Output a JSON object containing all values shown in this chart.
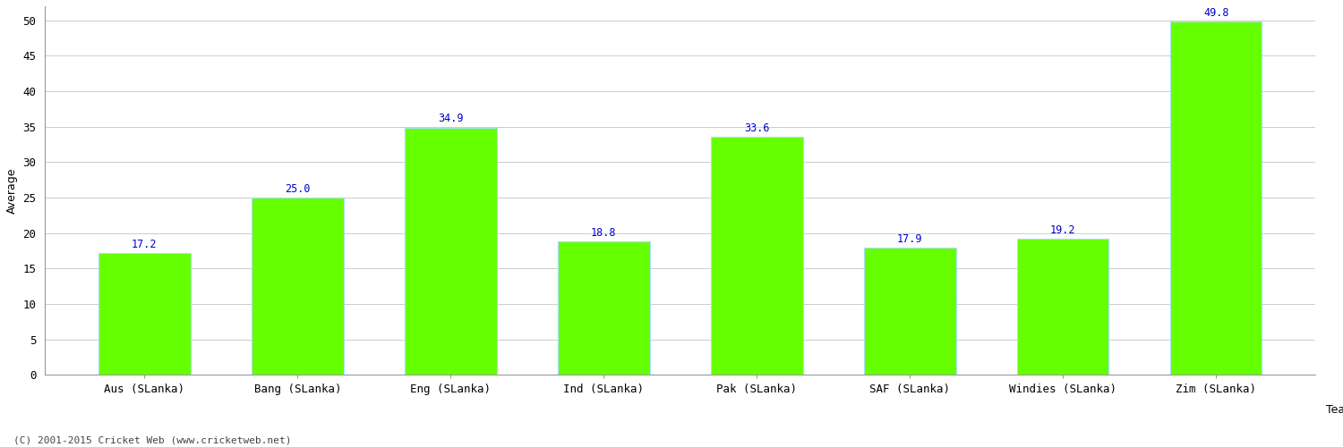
{
  "xlabel": "Team",
  "ylabel": "Average",
  "categories": [
    "Aus (SLanka)",
    "Bang (SLanka)",
    "Eng (SLanka)",
    "Ind (SLanka)",
    "Pak (SLanka)",
    "SAF (SLanka)",
    "Windies (SLanka)",
    "Zim (SLanka)"
  ],
  "values": [
    17.2,
    25.0,
    34.9,
    18.8,
    33.6,
    17.9,
    19.2,
    49.8
  ],
  "bar_color": "#66ff00",
  "bar_edge_color": "#aaddff",
  "value_color": "#0000cc",
  "ylim": [
    0,
    52
  ],
  "yticks": [
    0,
    5,
    10,
    15,
    20,
    25,
    30,
    35,
    40,
    45,
    50
  ],
  "background_color": "#ffffff",
  "grid_color": "#cccccc",
  "footer": "(C) 2001-2015 Cricket Web (www.cricketweb.net)",
  "axis_label_fontsize": 9,
  "tick_fontsize": 9,
  "value_fontsize": 8.5,
  "bar_width": 0.6
}
